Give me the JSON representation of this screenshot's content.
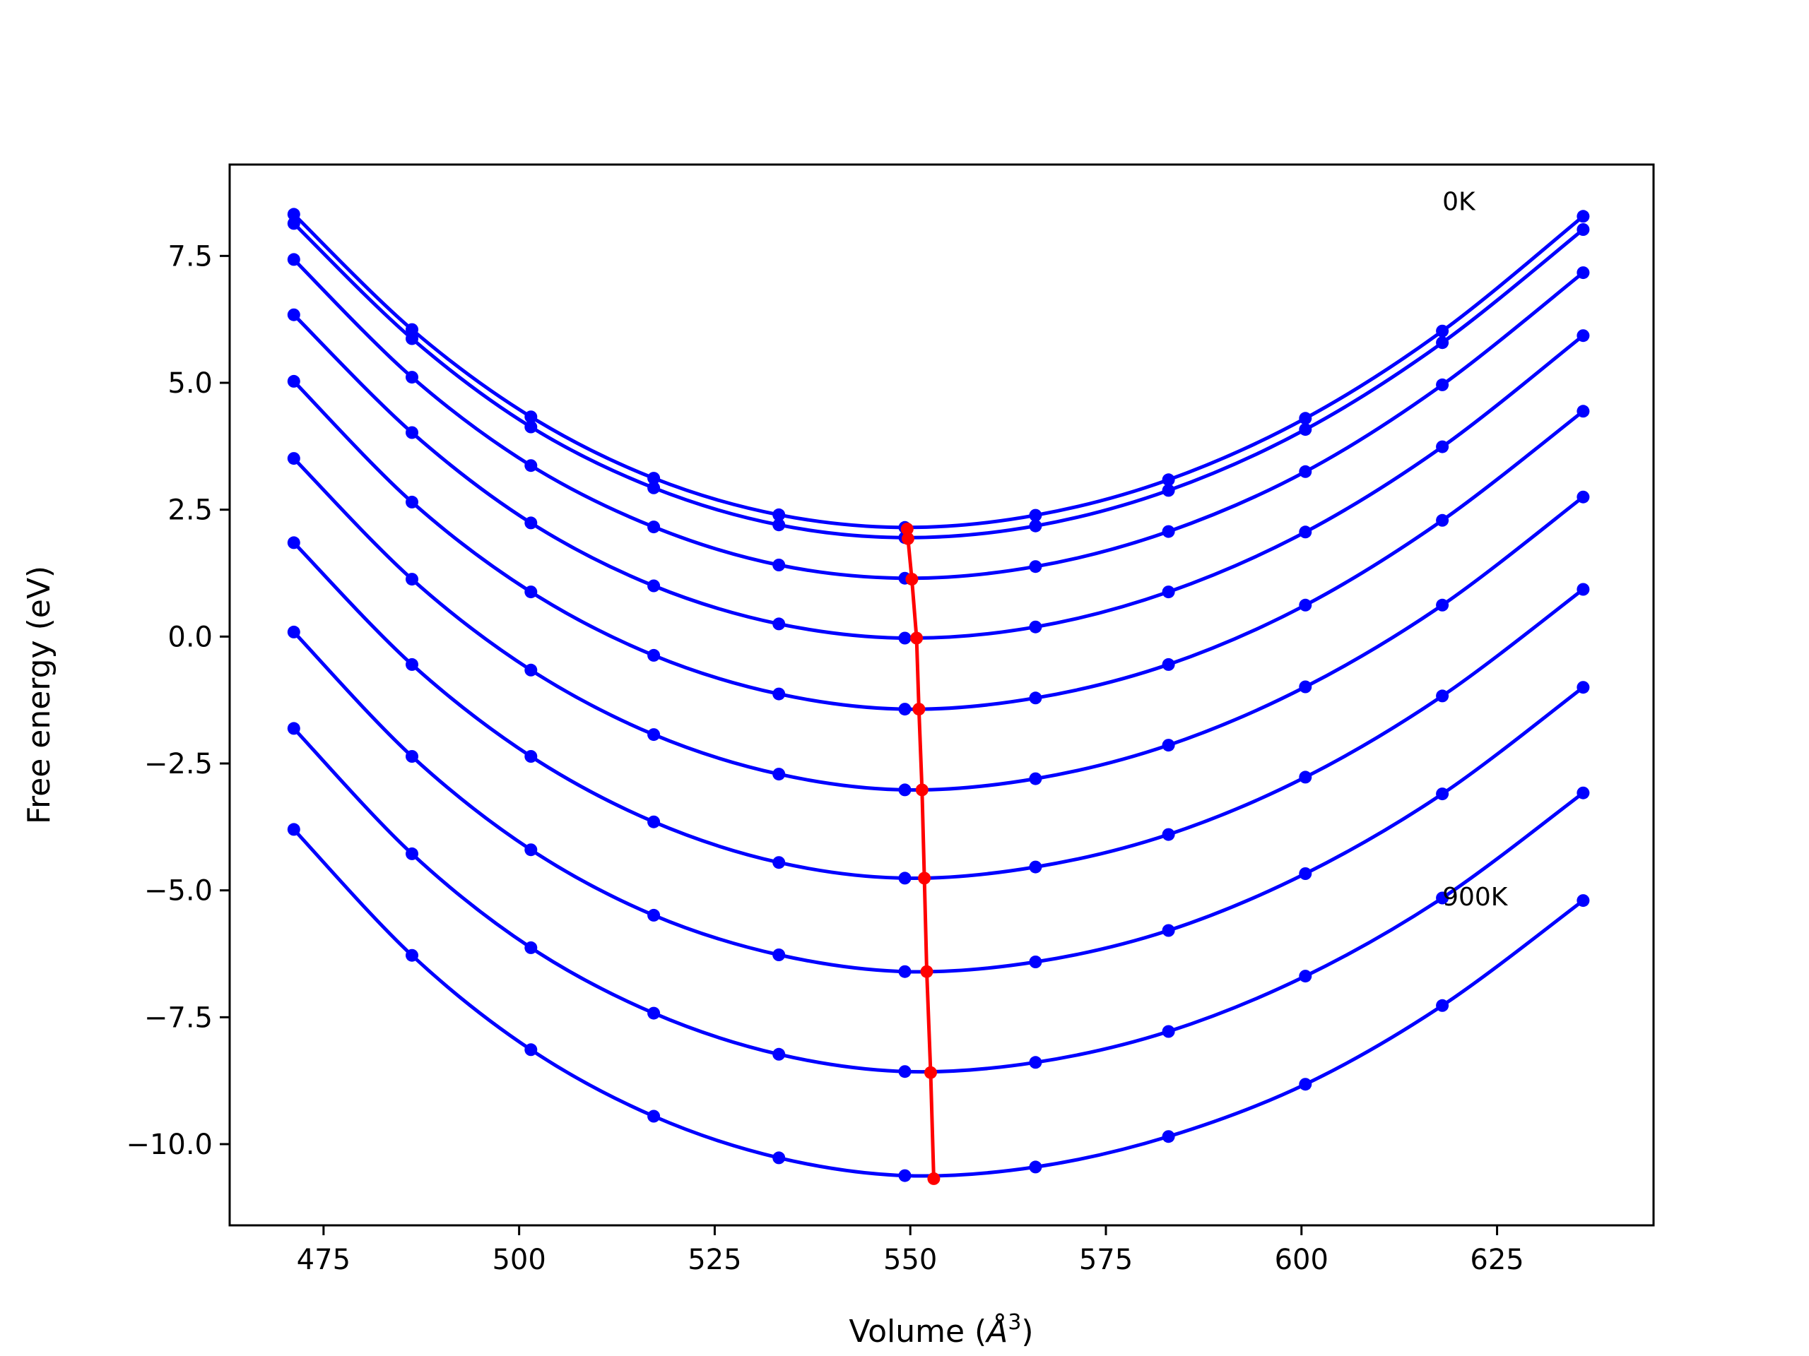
{
  "chart_data": {
    "type": "line",
    "xlabel": "Volume (",
    "xlabel_unit": "Å",
    "xlabel_exp": "3",
    "xlabel_close": ")",
    "ylabel": "Free energy (eV)",
    "xlim": [
      463,
      645
    ],
    "ylim": [
      -11.6,
      9.3
    ],
    "x_ticks": [
      475,
      500,
      525,
      550,
      575,
      600,
      625
    ],
    "y_ticks": [
      7.5,
      5.0,
      2.5,
      0.0,
      -2.5,
      -5.0,
      -7.5,
      -10.0
    ],
    "x_tick_labels": [
      "475",
      "500",
      "525",
      "550",
      "575",
      "600",
      "625"
    ],
    "y_tick_labels": [
      "7.5",
      "5.0",
      "2.5",
      "0.0",
      "−2.5",
      "−5.0",
      "−7.5",
      "−10.0"
    ],
    "grid": false,
    "legend": false,
    "colors": {
      "curves": "#0000ff",
      "minima": "#ff0000"
    },
    "annotations": [
      {
        "text": "0K",
        "x": 618,
        "y": 8.4
      },
      {
        "text": "900K",
        "x": 618,
        "y": -5.3
      }
    ],
    "x_points": [
      471.2,
      486.3,
      501.5,
      517.2,
      533.2,
      549.3,
      566.0,
      583.0,
      600.5,
      618.0,
      636.0
    ],
    "series": [
      {
        "values": [
          8.32,
          6.05,
          4.33,
          3.12,
          2.4,
          2.15,
          2.39,
          3.09,
          4.3,
          6.02,
          8.28
        ]
      },
      {
        "values": [
          8.14,
          5.87,
          4.13,
          2.93,
          2.2,
          1.95,
          2.18,
          2.88,
          4.08,
          5.79,
          8.02
        ]
      },
      {
        "values": [
          7.43,
          5.11,
          3.37,
          2.16,
          1.41,
          1.15,
          1.38,
          2.07,
          3.25,
          4.96,
          7.17
        ]
      },
      {
        "values": [
          6.34,
          4.02,
          2.24,
          1.0,
          0.25,
          -0.03,
          0.19,
          0.88,
          2.06,
          3.74,
          5.93
        ]
      },
      {
        "values": [
          5.03,
          2.65,
          0.88,
          -0.37,
          -1.13,
          -1.43,
          -1.21,
          -0.55,
          0.62,
          2.29,
          4.44
        ]
      },
      {
        "values": [
          3.51,
          1.13,
          -0.66,
          -1.93,
          -2.71,
          -3.02,
          -2.8,
          -2.14,
          -0.99,
          0.62,
          2.75
        ]
      },
      {
        "values": [
          1.85,
          -0.55,
          -2.36,
          -3.65,
          -4.45,
          -4.76,
          -4.54,
          -3.9,
          -2.77,
          -1.17,
          0.93
        ]
      },
      {
        "values": [
          0.09,
          -2.36,
          -4.2,
          -5.49,
          -6.27,
          -6.6,
          -6.41,
          -5.79,
          -4.67,
          -3.1,
          -1.0
        ]
      },
      {
        "values": [
          -1.81,
          -4.28,
          -6.13,
          -7.42,
          -8.23,
          -8.57,
          -8.39,
          -7.78,
          -6.69,
          -5.15,
          -3.08
        ]
      },
      {
        "values": [
          -3.8,
          -6.28,
          -8.14,
          -9.45,
          -10.27,
          -10.62,
          -10.45,
          -9.85,
          -8.82,
          -7.27,
          -5.2
        ]
      }
    ],
    "minima": {
      "x": [
        549.6,
        549.7,
        550.2,
        550.8,
        551.1,
        551.5,
        551.8,
        552.1,
        552.6,
        553.0
      ],
      "y": [
        2.12,
        1.93,
        1.13,
        -0.03,
        -1.43,
        -3.02,
        -4.76,
        -6.6,
        -8.59,
        -10.68
      ]
    }
  }
}
